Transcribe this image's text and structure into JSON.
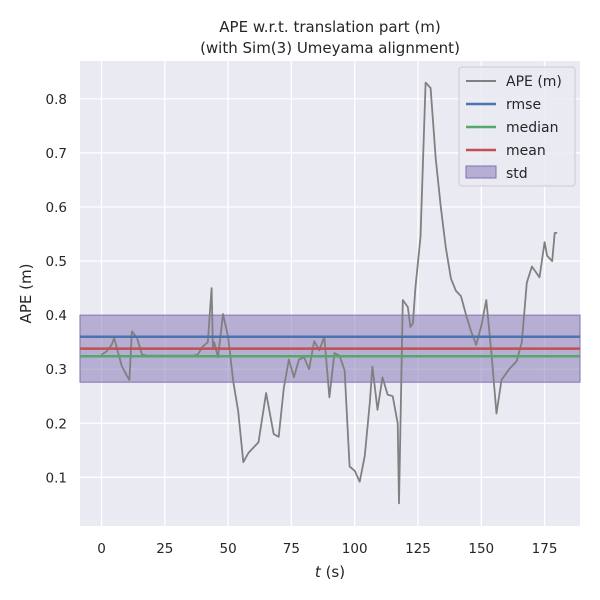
{
  "chart_data": {
    "type": "line",
    "title": "APE w.r.t. translation part (m)",
    "subtitle": "(with Sim(3) Umeyama alignment)",
    "xlabel_var": "t",
    "xlabel_unit": " (s)",
    "ylabel": "APE (m)",
    "xlim": [
      -8.5,
      189
    ],
    "ylim": [
      0.01,
      0.87
    ],
    "xticks": [
      0,
      25,
      50,
      75,
      100,
      125,
      150,
      175
    ],
    "xtick_labels": [
      "0",
      "25",
      "50",
      "75",
      "100",
      "125",
      "150",
      "175"
    ],
    "yticks": [
      0.1,
      0.2,
      0.3,
      0.4,
      0.5,
      0.6,
      0.7,
      0.8
    ],
    "ytick_labels": [
      "0.1",
      "0.2",
      "0.3",
      "0.4",
      "0.5",
      "0.6",
      "0.7",
      "0.8"
    ],
    "grid": true,
    "legend_position": "top-right",
    "colors": {
      "background": "#eaeaf2",
      "grid": "#ffffff",
      "ape": "#808080",
      "rmse": "#4c72b0",
      "median": "#55a868",
      "mean": "#c44e52",
      "std": "#8172b3"
    },
    "stats": {
      "rmse": 0.36,
      "median": 0.324,
      "mean": 0.338,
      "std_low": 0.276,
      "std_high": 0.4
    },
    "legend": [
      "APE (m)",
      "rmse",
      "median",
      "mean",
      "std"
    ],
    "series": [
      {
        "name": "APE (m)",
        "x": [
          0,
          2,
          4,
          5,
          6,
          8,
          10,
          11,
          12,
          14,
          16,
          18,
          20,
          22,
          24,
          26,
          28,
          30,
          32,
          34,
          36,
          38,
          40,
          42,
          43.5,
          44,
          44.5,
          46,
          48,
          50,
          52,
          54,
          56,
          58,
          60,
          62,
          65,
          68,
          70,
          72,
          74,
          76,
          78,
          80,
          82,
          84,
          86,
          88,
          90,
          92,
          94,
          96,
          98,
          100,
          102,
          104,
          106,
          107,
          109,
          111,
          113,
          115,
          117,
          117.5,
          119,
          121,
          122,
          123,
          124,
          126,
          128,
          130,
          132,
          134,
          136,
          138,
          140,
          142,
          144,
          146,
          148,
          150,
          152,
          154,
          156,
          158,
          161,
          164,
          166,
          168,
          170,
          173,
          175,
          176,
          178,
          179,
          180
        ],
        "y": [
          0.327,
          0.333,
          0.345,
          0.358,
          0.34,
          0.306,
          0.288,
          0.28,
          0.37,
          0.358,
          0.327,
          0.325,
          0.325,
          0.325,
          0.325,
          0.325,
          0.325,
          0.325,
          0.325,
          0.325,
          0.325,
          0.327,
          0.342,
          0.35,
          0.45,
          0.34,
          0.35,
          0.322,
          0.402,
          0.36,
          0.278,
          0.222,
          0.128,
          0.145,
          0.155,
          0.165,
          0.256,
          0.18,
          0.175,
          0.265,
          0.318,
          0.285,
          0.318,
          0.322,
          0.3,
          0.352,
          0.335,
          0.36,
          0.248,
          0.33,
          0.325,
          0.298,
          0.12,
          0.112,
          0.092,
          0.14,
          0.24,
          0.305,
          0.225,
          0.285,
          0.253,
          0.25,
          0.2,
          0.052,
          0.428,
          0.415,
          0.378,
          0.385,
          0.45,
          0.545,
          0.83,
          0.82,
          0.69,
          0.6,
          0.525,
          0.468,
          0.445,
          0.435,
          0.4,
          0.37,
          0.345,
          0.38,
          0.428,
          0.33,
          0.218,
          0.28,
          0.3,
          0.315,
          0.35,
          0.46,
          0.49,
          0.47,
          0.535,
          0.51,
          0.5,
          0.552,
          0.552
        ]
      }
    ]
  }
}
